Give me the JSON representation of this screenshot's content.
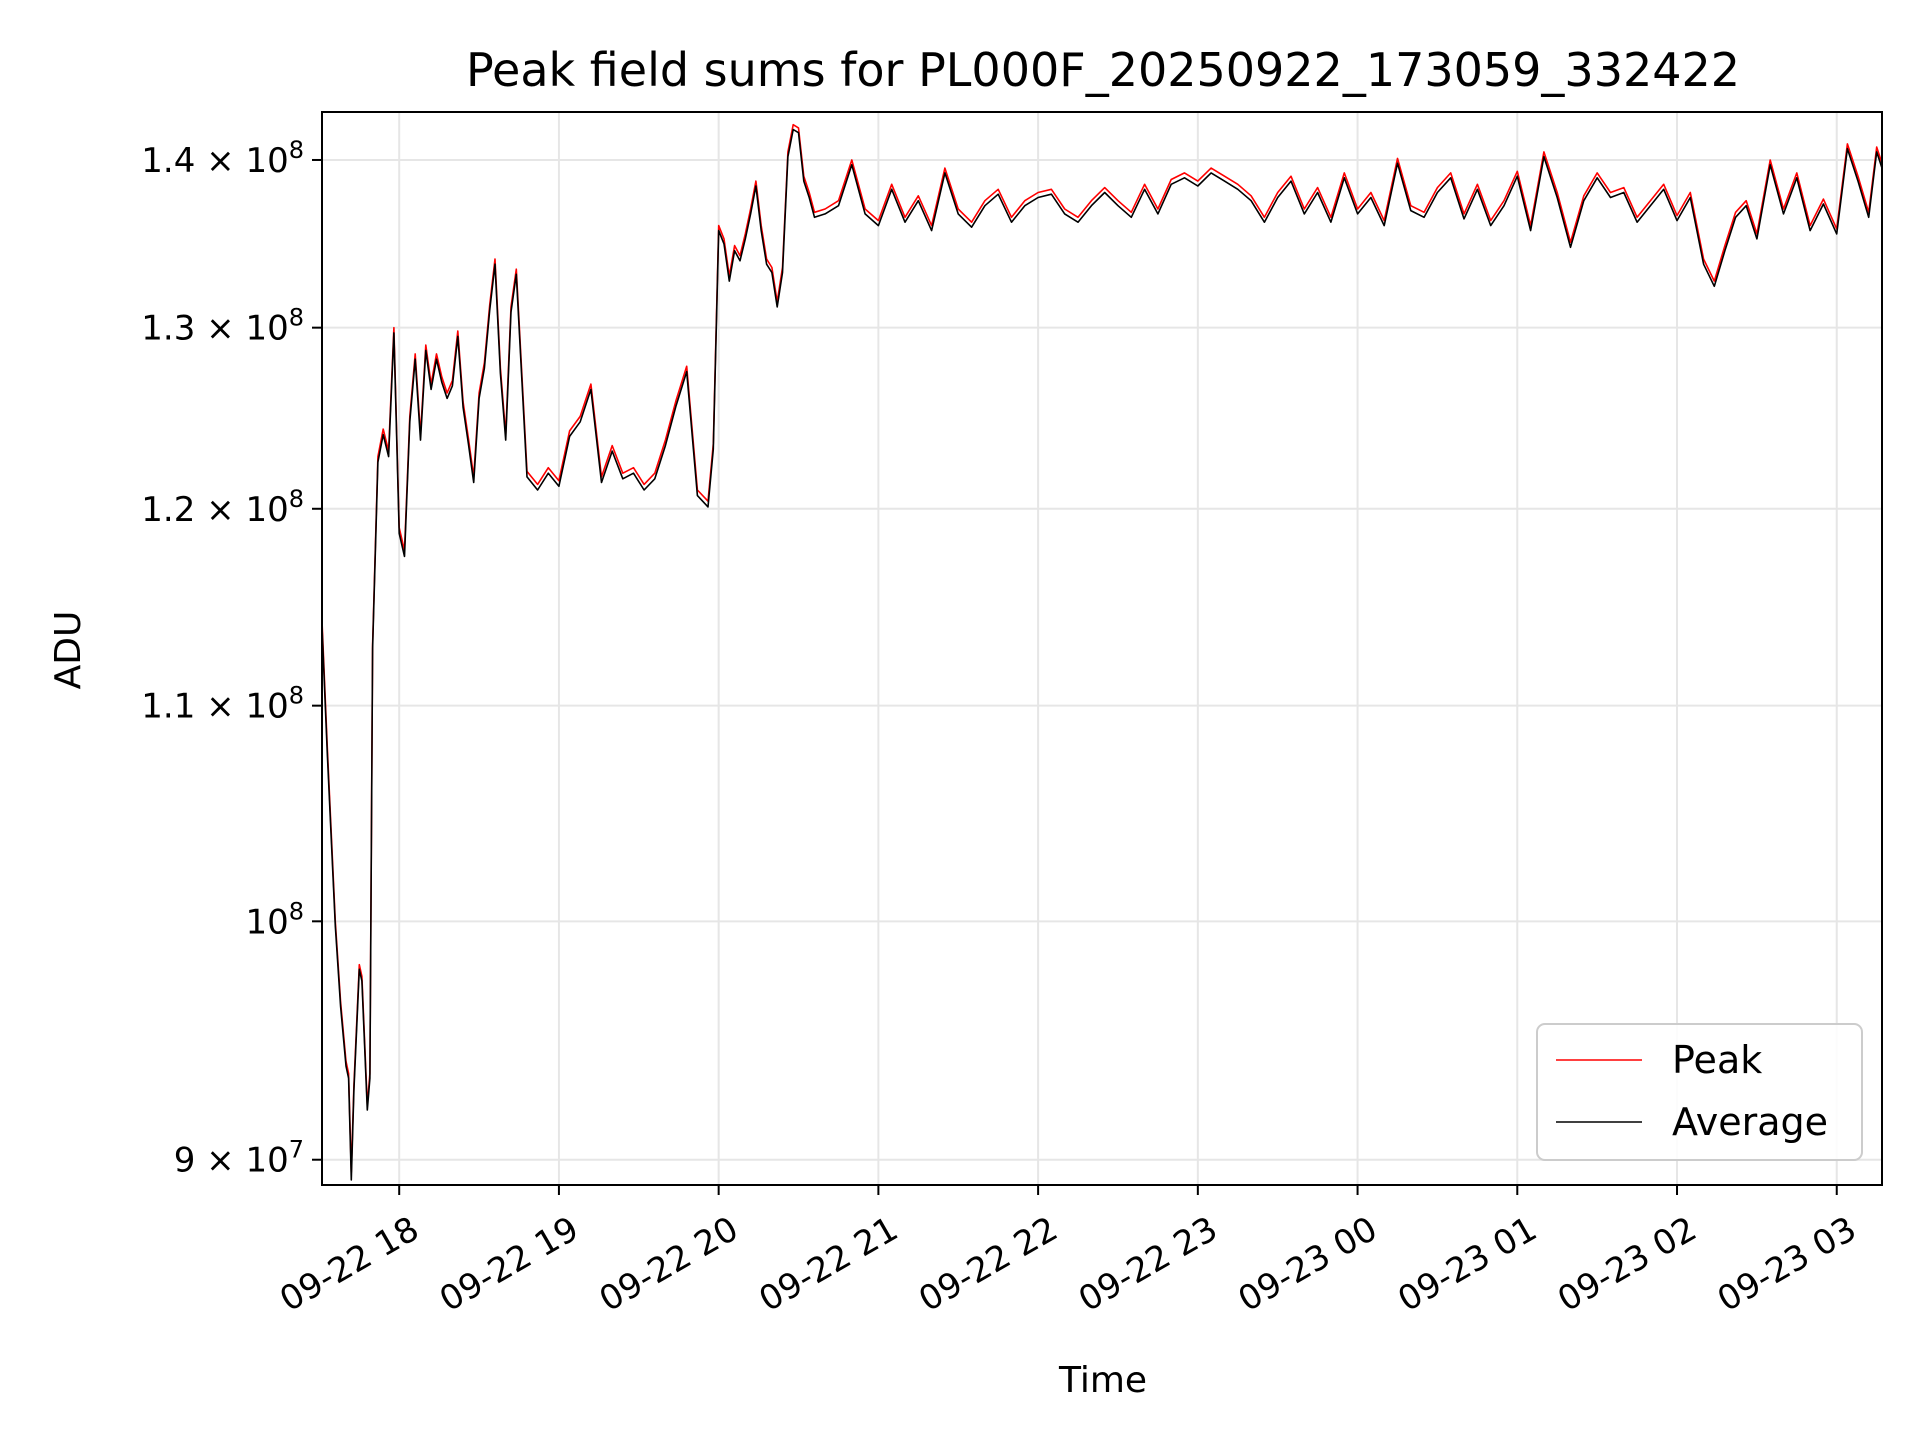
{
  "chart_data": {
    "type": "line",
    "title": "Peak field sums for PL000F_20250922_173059_332422",
    "xlabel": "Time",
    "ylabel": "ADU",
    "y_scale": "log",
    "x_range": [
      "2025-09-22 17:31",
      "2025-09-23 03:17"
    ],
    "ylim": [
      89000000,
      143000000
    ],
    "grid": true,
    "legend_position": "lower-right",
    "x_tick_values": [
      "2025-09-22 18:00",
      "2025-09-22 19:00",
      "2025-09-22 20:00",
      "2025-09-22 21:00",
      "2025-09-22 22:00",
      "2025-09-22 23:00",
      "2025-09-23 00:00",
      "2025-09-23 01:00",
      "2025-09-23 02:00",
      "2025-09-23 03:00"
    ],
    "x_tick_labels": [
      "09-22 18",
      "09-22 19",
      "09-22 20",
      "09-22 21",
      "09-22 22",
      "09-22 23",
      "09-23 00",
      "09-23 01",
      "09-23 02",
      "09-23 03"
    ],
    "y_ticks": [
      {
        "value": 90000000,
        "mantissa": "9",
        "exponent": "7"
      },
      {
        "value": 100000000,
        "mantissa": "",
        "exponent": "8"
      },
      {
        "value": 110000000,
        "mantissa": "1.1",
        "exponent": "8"
      },
      {
        "value": 120000000,
        "mantissa": "1.2",
        "exponent": "8"
      },
      {
        "value": 130000000,
        "mantissa": "1.3",
        "exponent": "8"
      },
      {
        "value": 140000000,
        "mantissa": "1.4",
        "exponent": "8"
      }
    ],
    "series": [
      {
        "name": "Peak",
        "color": "#ff0000",
        "x": [
          "2025-09-22 17:31",
          "2025-09-22 17:33",
          "2025-09-22 17:36",
          "2025-09-22 17:38",
          "2025-09-22 17:40",
          "2025-09-22 17:41",
          "2025-09-22 17:42",
          "2025-09-22 17:43",
          "2025-09-22 17:45",
          "2025-09-22 17:46",
          "2025-09-22 17:48",
          "2025-09-22 17:49",
          "2025-09-22 17:50",
          "2025-09-22 17:52",
          "2025-09-22 17:54",
          "2025-09-22 17:56",
          "2025-09-22 17:58",
          "2025-09-22 18:00",
          "2025-09-22 18:02",
          "2025-09-22 18:04",
          "2025-09-22 18:06",
          "2025-09-22 18:08",
          "2025-09-22 18:10",
          "2025-09-22 18:12",
          "2025-09-22 18:14",
          "2025-09-22 18:16",
          "2025-09-22 18:18",
          "2025-09-22 18:20",
          "2025-09-22 18:22",
          "2025-09-22 18:24",
          "2025-09-22 18:26",
          "2025-09-22 18:28",
          "2025-09-22 18:30",
          "2025-09-22 18:32",
          "2025-09-22 18:34",
          "2025-09-22 18:36",
          "2025-09-22 18:38",
          "2025-09-22 18:40",
          "2025-09-22 18:42",
          "2025-09-22 18:44",
          "2025-09-22 18:48",
          "2025-09-22 18:52",
          "2025-09-22 18:56",
          "2025-09-22 19:00",
          "2025-09-22 19:04",
          "2025-09-22 19:08",
          "2025-09-22 19:12",
          "2025-09-22 19:16",
          "2025-09-22 19:20",
          "2025-09-22 19:24",
          "2025-09-22 19:28",
          "2025-09-22 19:32",
          "2025-09-22 19:36",
          "2025-09-22 19:40",
          "2025-09-22 19:44",
          "2025-09-22 19:48",
          "2025-09-22 19:52",
          "2025-09-22 19:56",
          "2025-09-22 19:58",
          "2025-09-22 20:00",
          "2025-09-22 20:02",
          "2025-09-22 20:04",
          "2025-09-22 20:06",
          "2025-09-22 20:08",
          "2025-09-22 20:10",
          "2025-09-22 20:12",
          "2025-09-22 20:14",
          "2025-09-22 20:16",
          "2025-09-22 20:18",
          "2025-09-22 20:20",
          "2025-09-22 20:22",
          "2025-09-22 20:24",
          "2025-09-22 20:26",
          "2025-09-22 20:28",
          "2025-09-22 20:30",
          "2025-09-22 20:32",
          "2025-09-22 20:34",
          "2025-09-22 20:36",
          "2025-09-22 20:40",
          "2025-09-22 20:45",
          "2025-09-22 20:50",
          "2025-09-22 20:55",
          "2025-09-22 21:00",
          "2025-09-22 21:05",
          "2025-09-22 21:10",
          "2025-09-22 21:15",
          "2025-09-22 21:20",
          "2025-09-22 21:25",
          "2025-09-22 21:30",
          "2025-09-22 21:35",
          "2025-09-22 21:40",
          "2025-09-22 21:45",
          "2025-09-22 21:50",
          "2025-09-22 21:55",
          "2025-09-22 22:00",
          "2025-09-22 22:05",
          "2025-09-22 22:10",
          "2025-09-22 22:15",
          "2025-09-22 22:20",
          "2025-09-22 22:25",
          "2025-09-22 22:30",
          "2025-09-22 22:35",
          "2025-09-22 22:40",
          "2025-09-22 22:45",
          "2025-09-22 22:50",
          "2025-09-22 22:55",
          "2025-09-22 23:00",
          "2025-09-22 23:05",
          "2025-09-22 23:10",
          "2025-09-22 23:15",
          "2025-09-22 23:20",
          "2025-09-22 23:25",
          "2025-09-22 23:30",
          "2025-09-22 23:35",
          "2025-09-22 23:40",
          "2025-09-22 23:45",
          "2025-09-22 23:50",
          "2025-09-22 23:55",
          "2025-09-23 00:00",
          "2025-09-23 00:05",
          "2025-09-23 00:10",
          "2025-09-23 00:15",
          "2025-09-23 00:20",
          "2025-09-23 00:25",
          "2025-09-23 00:30",
          "2025-09-23 00:35",
          "2025-09-23 00:40",
          "2025-09-23 00:45",
          "2025-09-23 00:50",
          "2025-09-23 00:55",
          "2025-09-23 01:00",
          "2025-09-23 01:05",
          "2025-09-23 01:10",
          "2025-09-23 01:15",
          "2025-09-23 01:20",
          "2025-09-23 01:25",
          "2025-09-23 01:30",
          "2025-09-23 01:35",
          "2025-09-23 01:40",
          "2025-09-23 01:45",
          "2025-09-23 01:50",
          "2025-09-23 01:55",
          "2025-09-23 02:00",
          "2025-09-23 02:05",
          "2025-09-23 02:10",
          "2025-09-23 02:14",
          "2025-09-23 02:18",
          "2025-09-23 02:22",
          "2025-09-23 02:26",
          "2025-09-23 02:30",
          "2025-09-23 02:35",
          "2025-09-23 02:40",
          "2025-09-23 02:45",
          "2025-09-23 02:50",
          "2025-09-23 02:55",
          "2025-09-23 03:00",
          "2025-09-23 03:04",
          "2025-09-23 03:08",
          "2025-09-23 03:12",
          "2025-09-23 03:15",
          "2025-09-23 03:17"
        ],
        "values": [
          114200000,
          108000000,
          100000000,
          96500000,
          94000000,
          93500000,
          89500000,
          93000000,
          98100000,
          97600000,
          92200000,
          93500000,
          113000000,
          122800000,
          124300000,
          123100000,
          130000000,
          119000000,
          117800000,
          125000000,
          128500000,
          124000000,
          129000000,
          126800000,
          128500000,
          127200000,
          126300000,
          127000000,
          129800000,
          125800000,
          123800000,
          121700000,
          126300000,
          128000000,
          131300000,
          134000000,
          127700000,
          124000000,
          131200000,
          133400000,
          122000000,
          121300000,
          122200000,
          121500000,
          124200000,
          125000000,
          126800000,
          121700000,
          123400000,
          121900000,
          122200000,
          121300000,
          121900000,
          123700000,
          125900000,
          127800000,
          121000000,
          120400000,
          123500000,
          136000000,
          135200000,
          133000000,
          134800000,
          134200000,
          135500000,
          137000000,
          138700000,
          136000000,
          134000000,
          133500000,
          131500000,
          133500000,
          140500000,
          142200000,
          142000000,
          139000000,
          138000000,
          136800000,
          137000000,
          137500000,
          140000000,
          137000000,
          136300000,
          138500000,
          136500000,
          137800000,
          136000000,
          139500000,
          137000000,
          136200000,
          137500000,
          138200000,
          136500000,
          137500000,
          138000000,
          138200000,
          137000000,
          136500000,
          137500000,
          138300000,
          137500000,
          136800000,
          138500000,
          137000000,
          138800000,
          139200000,
          138700000,
          139500000,
          139000000,
          138500000,
          137800000,
          136500000,
          138000000,
          139000000,
          137000000,
          138300000,
          136500000,
          139200000,
          137000000,
          138000000,
          136300000,
          140100000,
          137200000,
          136800000,
          138300000,
          139200000,
          136700000,
          138500000,
          136300000,
          137500000,
          139300000,
          136000000,
          140500000,
          138000000,
          135000000,
          137800000,
          139200000,
          138000000,
          138300000,
          136500000,
          137500000,
          138500000,
          136600000,
          138000000,
          134000000,
          132700000,
          134800000,
          136800000,
          137500000,
          135500000,
          140000000,
          137000000,
          139200000,
          136000000,
          137600000,
          135800000,
          141000000,
          139000000,
          136800000,
          140800000,
          139800000
        ]
      },
      {
        "name": "Average",
        "color": "#000000",
        "x": [
          "2025-09-22 17:31",
          "2025-09-22 17:33",
          "2025-09-22 17:36",
          "2025-09-22 17:38",
          "2025-09-22 17:40",
          "2025-09-22 17:41",
          "2025-09-22 17:42",
          "2025-09-22 17:43",
          "2025-09-22 17:45",
          "2025-09-22 17:46",
          "2025-09-22 17:48",
          "2025-09-22 17:49",
          "2025-09-22 17:50",
          "2025-09-22 17:52",
          "2025-09-22 17:54",
          "2025-09-22 17:56",
          "2025-09-22 17:58",
          "2025-09-22 18:00",
          "2025-09-22 18:02",
          "2025-09-22 18:04",
          "2025-09-22 18:06",
          "2025-09-22 18:08",
          "2025-09-22 18:10",
          "2025-09-22 18:12",
          "2025-09-22 18:14",
          "2025-09-22 18:16",
          "2025-09-22 18:18",
          "2025-09-22 18:20",
          "2025-09-22 18:22",
          "2025-09-22 18:24",
          "2025-09-22 18:26",
          "2025-09-22 18:28",
          "2025-09-22 18:30",
          "2025-09-22 18:32",
          "2025-09-22 18:34",
          "2025-09-22 18:36",
          "2025-09-22 18:38",
          "2025-09-22 18:40",
          "2025-09-22 18:42",
          "2025-09-22 18:44",
          "2025-09-22 18:48",
          "2025-09-22 18:52",
          "2025-09-22 18:56",
          "2025-09-22 19:00",
          "2025-09-22 19:04",
          "2025-09-22 19:08",
          "2025-09-22 19:12",
          "2025-09-22 19:16",
          "2025-09-22 19:20",
          "2025-09-22 19:24",
          "2025-09-22 19:28",
          "2025-09-22 19:32",
          "2025-09-22 19:36",
          "2025-09-22 19:40",
          "2025-09-22 19:44",
          "2025-09-22 19:48",
          "2025-09-22 19:52",
          "2025-09-22 19:56",
          "2025-09-22 19:58",
          "2025-09-22 20:00",
          "2025-09-22 20:02",
          "2025-09-22 20:04",
          "2025-09-22 20:06",
          "2025-09-22 20:08",
          "2025-09-22 20:10",
          "2025-09-22 20:12",
          "2025-09-22 20:14",
          "2025-09-22 20:16",
          "2025-09-22 20:18",
          "2025-09-22 20:20",
          "2025-09-22 20:22",
          "2025-09-22 20:24",
          "2025-09-22 20:26",
          "2025-09-22 20:28",
          "2025-09-22 20:30",
          "2025-09-22 20:32",
          "2025-09-22 20:34",
          "2025-09-22 20:36",
          "2025-09-22 20:40",
          "2025-09-22 20:45",
          "2025-09-22 20:50",
          "2025-09-22 20:55",
          "2025-09-22 21:00",
          "2025-09-22 21:05",
          "2025-09-22 21:10",
          "2025-09-22 21:15",
          "2025-09-22 21:20",
          "2025-09-22 21:25",
          "2025-09-22 21:30",
          "2025-09-22 21:35",
          "2025-09-22 21:40",
          "2025-09-22 21:45",
          "2025-09-22 21:50",
          "2025-09-22 21:55",
          "2025-09-22 22:00",
          "2025-09-22 22:05",
          "2025-09-22 22:10",
          "2025-09-22 22:15",
          "2025-09-22 22:20",
          "2025-09-22 22:25",
          "2025-09-22 22:30",
          "2025-09-22 22:35",
          "2025-09-22 22:40",
          "2025-09-22 22:45",
          "2025-09-22 22:50",
          "2025-09-22 22:55",
          "2025-09-22 23:00",
          "2025-09-22 23:05",
          "2025-09-22 23:10",
          "2025-09-22 23:15",
          "2025-09-22 23:20",
          "2025-09-22 23:25",
          "2025-09-22 23:30",
          "2025-09-22 23:35",
          "2025-09-22 23:40",
          "2025-09-22 23:45",
          "2025-09-22 23:50",
          "2025-09-22 23:55",
          "2025-09-23 00:00",
          "2025-09-23 00:05",
          "2025-09-23 00:10",
          "2025-09-23 00:15",
          "2025-09-23 00:20",
          "2025-09-23 00:25",
          "2025-09-23 00:30",
          "2025-09-23 00:35",
          "2025-09-23 00:40",
          "2025-09-23 00:45",
          "2025-09-23 00:50",
          "2025-09-23 00:55",
          "2025-09-23 01:00",
          "2025-09-23 01:05",
          "2025-09-23 01:10",
          "2025-09-23 01:15",
          "2025-09-23 01:20",
          "2025-09-23 01:25",
          "2025-09-23 01:30",
          "2025-09-23 01:35",
          "2025-09-23 01:40",
          "2025-09-23 01:45",
          "2025-09-23 01:50",
          "2025-09-23 01:55",
          "2025-09-23 02:00",
          "2025-09-23 02:05",
          "2025-09-23 02:10",
          "2025-09-23 02:14",
          "2025-09-23 02:18",
          "2025-09-23 02:22",
          "2025-09-23 02:26",
          "2025-09-23 02:30",
          "2025-09-23 02:35",
          "2025-09-23 02:40",
          "2025-09-23 02:45",
          "2025-09-23 02:50",
          "2025-09-23 02:55",
          "2025-09-23 03:00",
          "2025-09-23 03:04",
          "2025-09-23 03:08",
          "2025-09-23 03:12",
          "2025-09-23 03:15",
          "2025-09-23 03:17"
        ],
        "values": [
          113900000,
          107700000,
          99800000,
          96300000,
          93800000,
          93300000,
          89200000,
          92800000,
          97900000,
          97400000,
          92000000,
          93300000,
          112800000,
          122500000,
          124000000,
          122800000,
          129700000,
          118700000,
          117500000,
          124700000,
          128200000,
          123700000,
          128700000,
          126500000,
          128200000,
          126900000,
          126000000,
          126700000,
          129500000,
          125500000,
          123500000,
          121400000,
          126000000,
          127700000,
          131000000,
          133700000,
          127400000,
          123700000,
          130900000,
          133100000,
          121700000,
          121000000,
          121900000,
          121200000,
          123900000,
          124700000,
          126500000,
          121400000,
          123100000,
          121600000,
          121900000,
          121000000,
          121600000,
          123400000,
          125600000,
          127500000,
          120700000,
          120100000,
          123200000,
          135700000,
          134900000,
          132700000,
          134500000,
          133900000,
          135200000,
          136700000,
          138400000,
          135700000,
          133700000,
          133200000,
          131200000,
          133200000,
          140200000,
          141900000,
          141700000,
          138700000,
          137700000,
          136500000,
          136700000,
          137200000,
          139700000,
          136700000,
          136000000,
          138200000,
          136200000,
          137500000,
          135700000,
          139200000,
          136700000,
          135900000,
          137200000,
          137900000,
          136200000,
          137200000,
          137700000,
          137900000,
          136700000,
          136200000,
          137200000,
          138000000,
          137200000,
          136500000,
          138200000,
          136700000,
          138500000,
          138900000,
          138400000,
          139200000,
          138700000,
          138200000,
          137500000,
          136200000,
          137700000,
          138700000,
          136700000,
          138000000,
          136200000,
          138900000,
          136700000,
          137700000,
          136000000,
          139800000,
          136900000,
          136500000,
          138000000,
          138900000,
          136400000,
          138200000,
          136000000,
          137200000,
          139000000,
          135700000,
          140200000,
          137700000,
          134700000,
          137500000,
          138900000,
          137700000,
          138000000,
          136200000,
          137200000,
          138200000,
          136300000,
          137700000,
          133700000,
          132400000,
          134500000,
          136500000,
          137200000,
          135200000,
          139700000,
          136700000,
          138900000,
          135700000,
          137300000,
          135500000,
          140700000,
          138700000,
          136500000,
          140500000,
          139500000
        ]
      }
    ]
  }
}
